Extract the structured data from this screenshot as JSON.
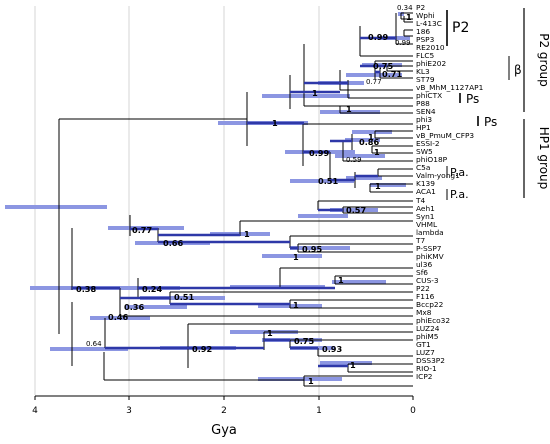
{
  "axis": {
    "label": "Gya",
    "ticks": [
      "4",
      "3",
      "2",
      "1",
      "0"
    ]
  },
  "colors": {
    "branch": "#000000",
    "hpd_bar": "#8c96e2",
    "supported_branch": "#2e38a8",
    "grid": "#cccccc"
  },
  "tips": [
    "P2",
    "Wphi",
    "L-413C",
    "186",
    "PSP3",
    "RE2010",
    "FLC5",
    "phiE202",
    "KL3",
    "ST79",
    "vB_MhM_1127AP1",
    "phiCTX",
    "P88",
    "SEN4",
    "phi3",
    "HP1",
    "vB_PmuM_CFP3",
    "ESSI-2",
    "SW5",
    "phiO18P",
    "C5a",
    "Valm-yong1",
    "K139",
    "ACA1",
    "T4",
    "Aeh1",
    "Syn1",
    "VHML",
    "lambda",
    "T7",
    "P-SSP7",
    "phiKMV",
    "ul36",
    "Sf6",
    "CUS-3",
    "P22",
    "F116",
    "Bccp22",
    "Mx8",
    "phiEco32",
    "LUZ24",
    "phiM5",
    "GT1",
    "LUZ7",
    "DSS3P2",
    "RIO-1",
    "ICP2"
  ],
  "supports": [
    "0.34",
    "1",
    "0.99",
    "0.99",
    "0.75",
    "0.71",
    "0.77",
    "1",
    "1",
    "1",
    "0.99",
    "0.86",
    "0.59",
    "1",
    "0.51",
    "1",
    "1",
    "0.57",
    "0.77",
    "1",
    "0.66",
    "0.95",
    "1",
    "0.38",
    "0.24",
    "0.51",
    "1",
    "0.36",
    "1",
    "0.46",
    "1",
    "0.75",
    "0.93",
    "0.64",
    "0.92",
    "1",
    "1"
  ],
  "clades": {
    "p2": "P2",
    "beta": "β",
    "ps1": "Ps",
    "ps2": "Ps",
    "pa1": "P.a.",
    "pa2": "P.a.",
    "p2_group": "P2 group",
    "hp1_group": "HP1 group"
  }
}
